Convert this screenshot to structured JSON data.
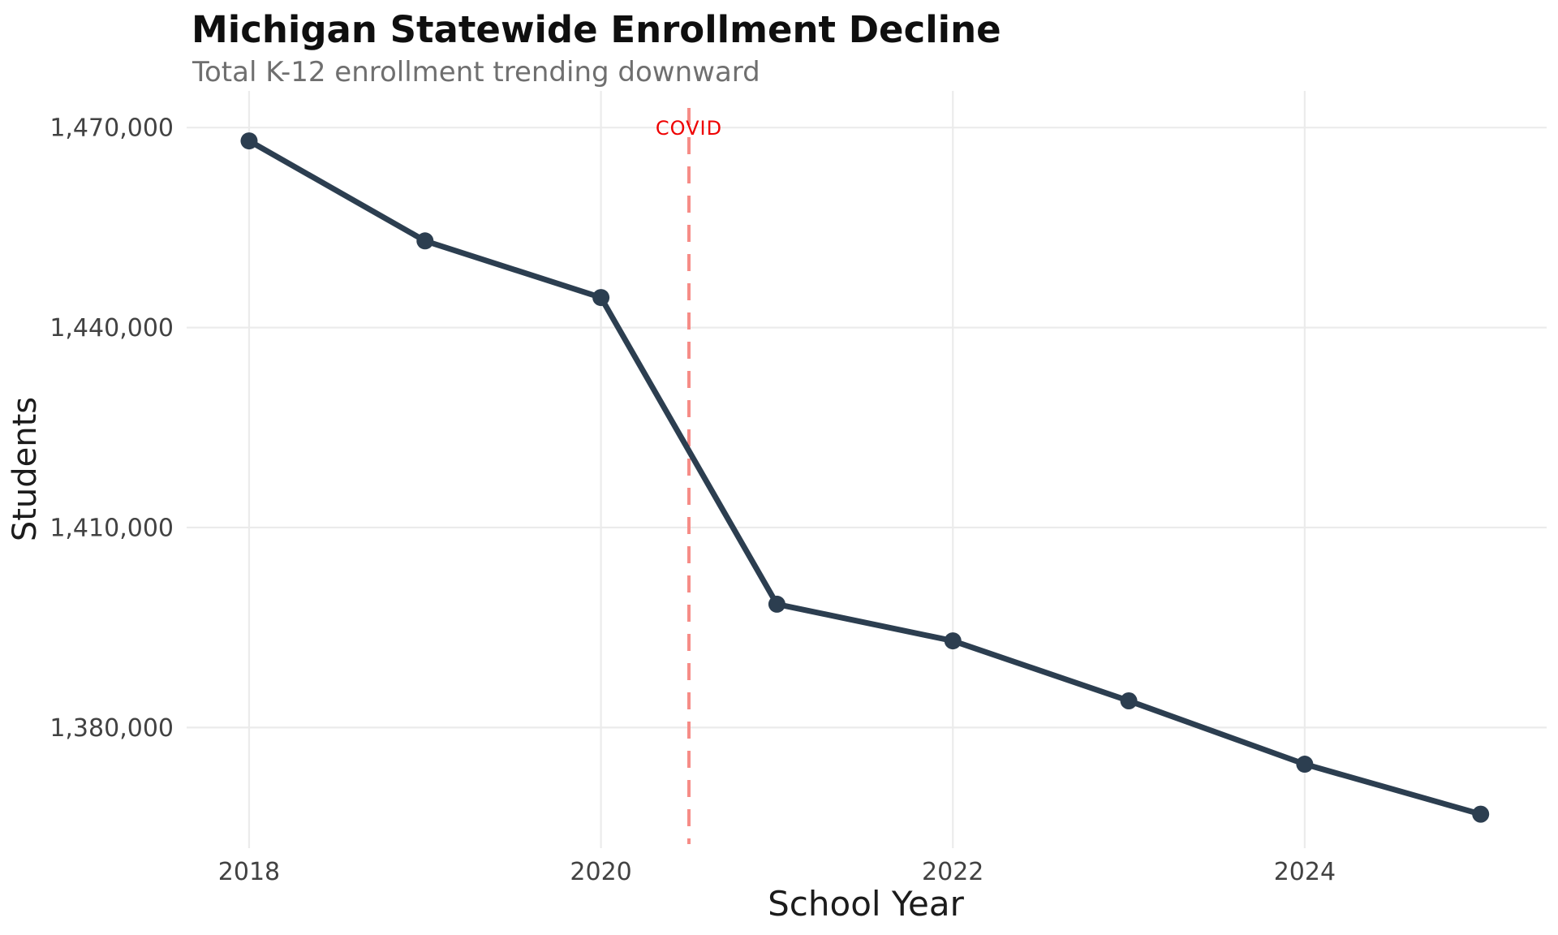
{
  "header": {
    "title": "Michigan Statewide Enrollment Decline",
    "subtitle": "Total K-12 enrollment trending downward"
  },
  "chart_data": {
    "type": "line",
    "title": "Michigan Statewide Enrollment Decline",
    "subtitle": "Total K-12 enrollment trending downward",
    "xlabel": "School Year",
    "ylabel": "Students",
    "series": [
      {
        "name": "Total K-12 enrollment",
        "x": [
          2018,
          2019,
          2020,
          2021,
          2022,
          2023,
          2024,
          2025
        ],
        "values": [
          1468000,
          1453000,
          1444500,
          1398500,
          1393000,
          1384000,
          1374500,
          1367000
        ]
      }
    ],
    "xticks": [
      {
        "value": 2018,
        "label": "2018"
      },
      {
        "value": 2020,
        "label": "2020"
      },
      {
        "value": 2022,
        "label": "2022"
      },
      {
        "value": 2024,
        "label": "2024"
      }
    ],
    "yticks": [
      {
        "value": 1470000,
        "label": "1,470,000"
      },
      {
        "value": 1440000,
        "label": "1,440,000"
      },
      {
        "value": 1410000,
        "label": "1,410,000"
      },
      {
        "value": 1380000,
        "label": "1,380,000"
      }
    ],
    "xlim": [
      2017.645,
      2025.375
    ],
    "ylim": [
      1361900,
      1475500
    ],
    "grid": true,
    "legend": "none",
    "annotation": {
      "label": "COVID",
      "x": 2020.5,
      "style": "dashed"
    }
  },
  "colors": {
    "line": "#2c3e50",
    "marker": "#2c3e50",
    "grid": "#ebebeb",
    "annotation_line": "#f68c87",
    "annotation_label": "#ee0000",
    "title": "#0f0f0f",
    "subtitle": "#6f6f6f",
    "tick_label": "#424242",
    "axis_label": "#1c1c1c",
    "background": "#ffffff"
  }
}
